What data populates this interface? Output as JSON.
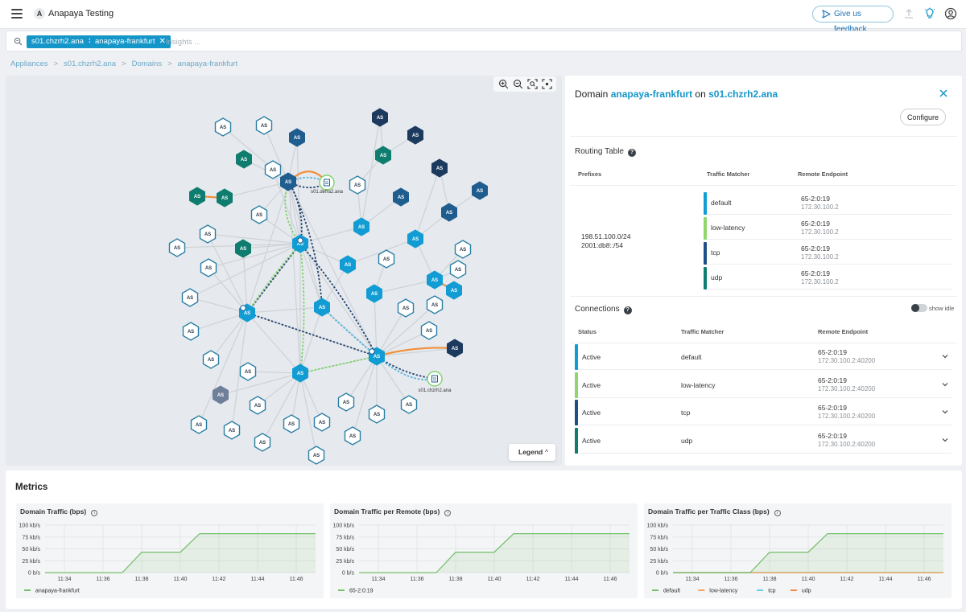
{
  "header": {
    "app_logo_letter": "A",
    "app_title": "Anapaya Testing",
    "feedback_label": "Give us feedback"
  },
  "search": {
    "chips": [
      "s01.chzrh2.ana",
      "anapaya-frankfurt"
    ],
    "placeholder": "Insights ..."
  },
  "breadcrumb": [
    "Appliances",
    "s01.chzrh2.ana",
    "Domains",
    "anapaya-frankfurt"
  ],
  "graph": {
    "node_label": "AS",
    "appliances": [
      "s01.defra2.ana",
      "s01.chzrh2.ana"
    ],
    "legend_label": "Legend",
    "colors": {
      "node_white_stroke": "#2a7ea3",
      "node_dark": "#1c3a5e",
      "node_navy": "#1f5d8f",
      "node_teal": "#0e7d6f",
      "node_cyan": "#119dd4",
      "node_gray": "#6e7f99",
      "edge_gray": "#cfd4d9",
      "orange": "#f0903c",
      "green": "#7ed36a",
      "lightblue": "#4bb4df",
      "dashnavy": "#23456f"
    }
  },
  "detail": {
    "title_prefix": "Domain",
    "domain": "anapaya-frankfurt",
    "title_mid": "on",
    "appliance": "s01.chzrh2.ana",
    "configure_label": "Configure",
    "routing_table": {
      "title": "Routing Table",
      "headers": [
        "Prefixes",
        "Traffic Matcher",
        "Remote Endpoint"
      ],
      "prefixes": [
        "198.51.100.0/24",
        "2001:db8::/54"
      ],
      "rows": [
        {
          "matcher": "default",
          "endpoint": "65-2:0:19",
          "ip": "172.30.100.2",
          "color": "#119dd4"
        },
        {
          "matcher": "low-latency",
          "endpoint": "65-2:0:19",
          "ip": "172.30.100.2",
          "color": "#8fd66d"
        },
        {
          "matcher": "tcp",
          "endpoint": "65-2:0:19",
          "ip": "172.30.100.2",
          "color": "#1f4f86"
        },
        {
          "matcher": "udp",
          "endpoint": "65-2:0:19",
          "ip": "172.30.100.2",
          "color": "#0e7d6f"
        }
      ]
    },
    "connections": {
      "title": "Connections",
      "show_idle_label": "show idle",
      "headers": [
        "Status",
        "Traffic Matcher",
        "Remote Endpoint"
      ],
      "rows": [
        {
          "status": "Active",
          "matcher": "default",
          "endpoint": "65-2:0:19",
          "ip": "172.30.100.2:40200",
          "color": "#119dd4"
        },
        {
          "status": "Active",
          "matcher": "low-latency",
          "endpoint": "65-2:0:19",
          "ip": "172.30.100.2:40200",
          "color": "#8fd66d"
        },
        {
          "status": "Active",
          "matcher": "tcp",
          "endpoint": "65-2:0:19",
          "ip": "172.30.100.2:40200",
          "color": "#1f4f86"
        },
        {
          "status": "Active",
          "matcher": "udp",
          "endpoint": "65-2:0:19",
          "ip": "172.30.100.2:40200",
          "color": "#0e7d6f"
        }
      ]
    }
  },
  "metrics": {
    "title": "Metrics",
    "chart_data": [
      {
        "type": "line",
        "title": "Domain Traffic (bps)",
        "x": [
          "11:33",
          "11:37",
          "11:38",
          "11:40",
          "11:41",
          "11:47"
        ],
        "x_ticks": [
          "11:34",
          "11:36",
          "11:38",
          "11:40",
          "11:42",
          "11:44",
          "11:46"
        ],
        "y_ticks": [
          "0 b/s",
          "25 kb/s",
          "50 kb/s",
          "75 kb/s",
          "100 kb/s"
        ],
        "ylim": [
          0,
          100
        ],
        "series": [
          {
            "name": "anapaya-frankfurt",
            "color": "#73bf69",
            "values": [
              0,
              0,
              43,
              43,
              82,
              82
            ]
          }
        ]
      },
      {
        "type": "line",
        "title": "Domain Traffic per Remote (bps)",
        "x": [
          "11:33",
          "11:37",
          "11:38",
          "11:40",
          "11:41",
          "11:47"
        ],
        "x_ticks": [
          "11:34",
          "11:36",
          "11:38",
          "11:40",
          "11:42",
          "11:44",
          "11:46"
        ],
        "y_ticks": [
          "0 b/s",
          "25 kb/s",
          "50 kb/s",
          "75 kb/s",
          "100 kb/s"
        ],
        "ylim": [
          0,
          100
        ],
        "series": [
          {
            "name": "65-2:0:19",
            "color": "#73bf69",
            "values": [
              0,
              0,
              43,
              43,
              82,
              82
            ]
          }
        ]
      },
      {
        "type": "line",
        "title": "Domain Traffic per Traffic Class (bps)",
        "x": [
          "11:33",
          "11:37",
          "11:38",
          "11:40",
          "11:41",
          "11:47"
        ],
        "x_ticks": [
          "11:34",
          "11:36",
          "11:38",
          "11:40",
          "11:42",
          "11:44",
          "11:46"
        ],
        "y_ticks": [
          "0 b/s",
          "25 kb/s",
          "50 kb/s",
          "75 kb/s",
          "100 kb/s"
        ],
        "ylim": [
          0,
          100
        ],
        "series": [
          {
            "name": "default",
            "color": "#73bf69",
            "values": [
              0,
              0,
              43,
              43,
              82,
              82
            ]
          },
          {
            "name": "low-latency",
            "color": "#f2a25c",
            "values": [
              0,
              0,
              0,
              0,
              0,
              0
            ]
          },
          {
            "name": "tcp",
            "color": "#6cc9e8",
            "values": [
              0,
              0,
              0,
              0,
              0,
              0
            ]
          },
          {
            "name": "udp",
            "color": "#f08a4b",
            "values": [
              0,
              0,
              0,
              0,
              0,
              0
            ]
          }
        ]
      }
    ]
  }
}
